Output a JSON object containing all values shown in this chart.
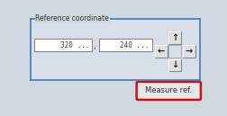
{
  "title": "Reference coordinate",
  "fig_bg": "#d0d8e0",
  "panel_bg": "#d8dfe8",
  "panel_border": "#4477bb",
  "box_bg": "#ffffff",
  "box_border": "#888888",
  "val1": "320",
  "val2": "240",
  "dots": "...",
  "separator": ",",
  "arrows": [
    "←",
    "→",
    "↑",
    "↓"
  ],
  "btn_label": "Measure ref.",
  "btn_border": "#cc1111",
  "btn_bg": "#e8e8e8",
  "arrow_btn_bg": "#e0e0e0",
  "arrow_btn_border": "#999999",
  "title_fontsize": 5.5,
  "val_fontsize": 5.5,
  "arrow_fontsize": 7,
  "btn_fontsize": 6
}
